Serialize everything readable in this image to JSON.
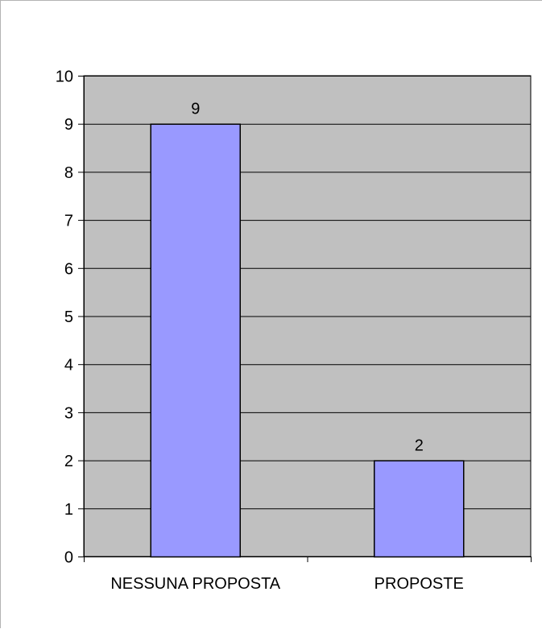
{
  "chart_data": {
    "type": "bar",
    "title": "",
    "xlabel": "",
    "ylabel": "",
    "categories": [
      "NESSUNA PROPOSTA",
      "PROPOSTE"
    ],
    "values": [
      9,
      2
    ],
    "data_labels": [
      "9",
      "2"
    ],
    "ylim": [
      0,
      10
    ],
    "yticks": [
      "0",
      "1",
      "2",
      "3",
      "4",
      "5",
      "6",
      "7",
      "8",
      "9",
      "10"
    ],
    "grid": true,
    "legend": "none",
    "colors": {
      "plot_area": "#c0c0c0",
      "bar_fill": "#9999ff",
      "bar_stroke": "#000000",
      "gridline": "#000000",
      "axis": "#000000"
    }
  }
}
